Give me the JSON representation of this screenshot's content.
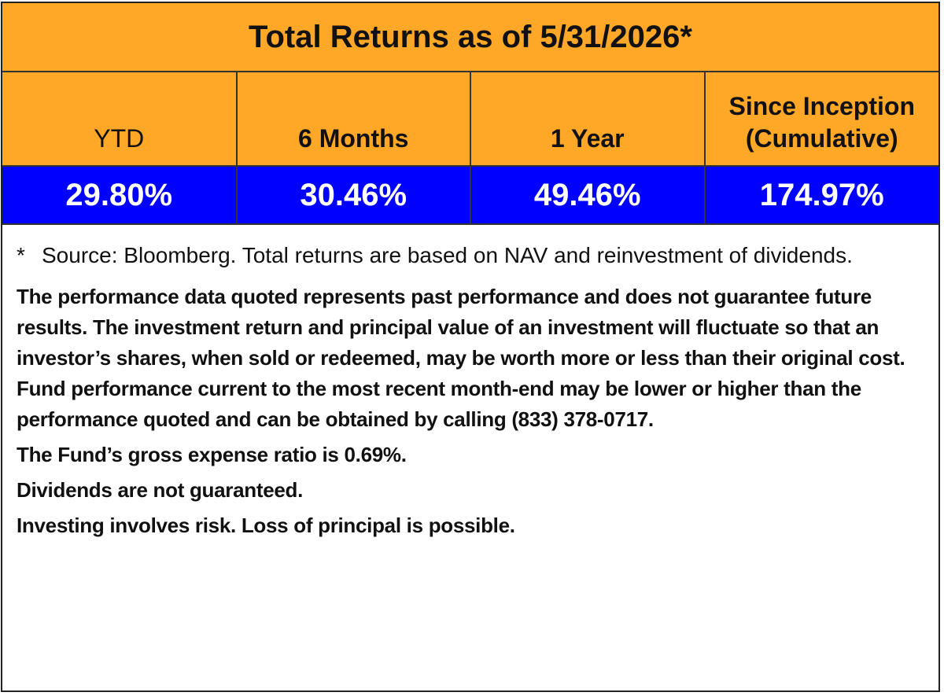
{
  "header": {
    "title": "Total Returns as of 5/31/2026*"
  },
  "table": {
    "columns": [
      "YTD",
      "6 Months",
      "1 Year",
      "Since Inception (Cumulative)"
    ],
    "rows": [
      [
        "29.80%",
        "30.46%",
        "49.46%",
        "174.97%"
      ]
    ]
  },
  "footnote": {
    "marker": "*",
    "text": "Source: Bloomberg. Total returns are based on NAV and reinvestment of dividends."
  },
  "disclosures": [
    "The performance data quoted represents past performance and does not guarantee future results. The investment return and principal value of an investment will fluctuate so that an investor’s shares, when sold or redeemed, may be worth more or less than their original cost. Fund performance current to the most recent month-end may be lower or higher than the performance quoted and can be obtained by calling (833) 378-0717.",
    "The Fund’s gross expense ratio is 0.69%.",
    "Dividends are not guaranteed.",
    "Investing involves risk. Loss of principal is possible."
  ]
}
